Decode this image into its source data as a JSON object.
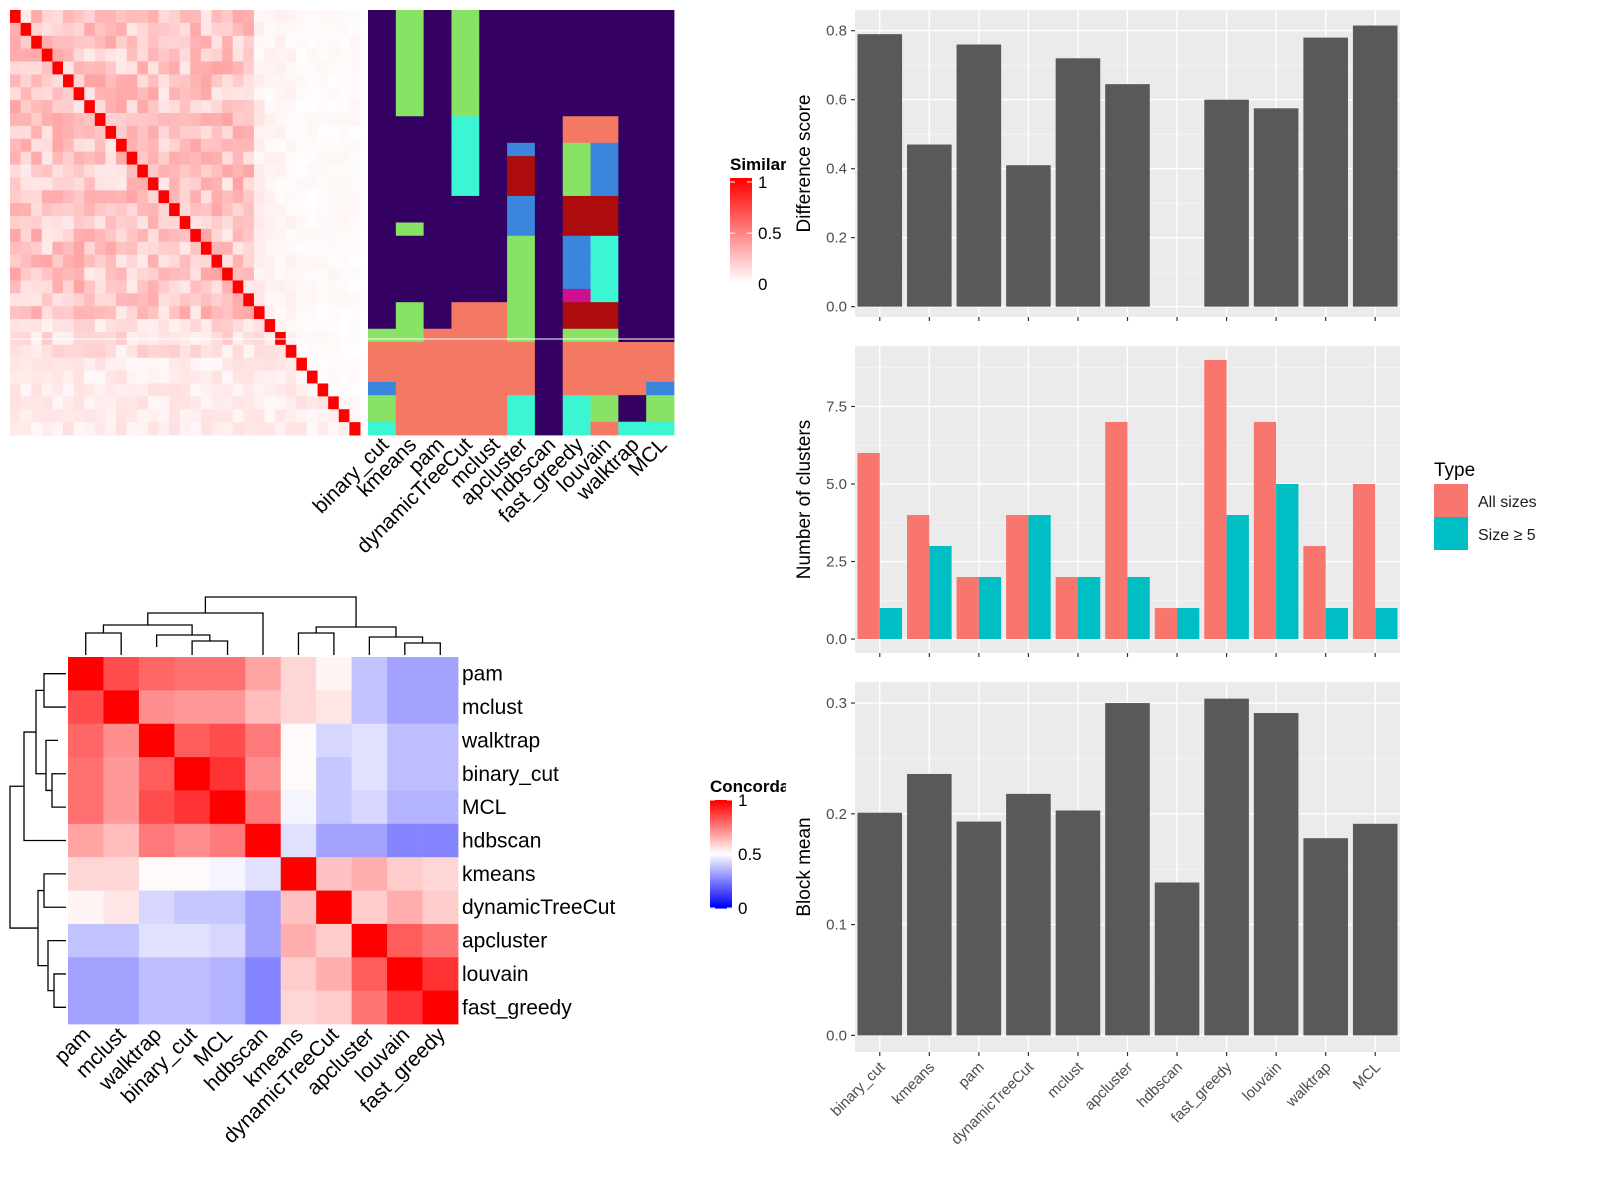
{
  "methods": [
    "binary_cut",
    "kmeans",
    "pam",
    "dynamicTreeCut",
    "mclust",
    "apcluster",
    "hdbscan",
    "fast_greedy",
    "louvain",
    "walktrap",
    "MCL"
  ],
  "similarity_legend": {
    "title": "Similarity",
    "ticks": [
      "1",
      "0.5",
      "0"
    ],
    "low_color": "#FFFFFF",
    "high_color": "#FF0000"
  },
  "concordance_legend": {
    "title": "Concordance",
    "ticks": [
      "1",
      "0.5",
      "0"
    ],
    "low_color": "#0000FF",
    "mid_color": "#FFFFFF",
    "high_color": "#FF0000"
  },
  "concordance_order": [
    "pam",
    "mclust",
    "walktrap",
    "binary_cut",
    "MCL",
    "hdbscan",
    "kmeans",
    "dynamicTreeCut",
    "apcluster",
    "louvain",
    "fast_greedy"
  ],
  "cluster_palette": [
    "#340062",
    "#88E264",
    "#3CF6D3",
    "#3B86DC",
    "#AC0C0C",
    "#F47964",
    "#CF0F92"
  ],
  "type_legend": {
    "title": "Type",
    "all_label": "All sizes",
    "size_label": "Size ≥ 5",
    "all_color": "#F8766D",
    "size_color": "#00BFC4"
  },
  "chart_data": [
    {
      "type": "bar",
      "title": "",
      "xlabel": "",
      "ylabel": "Difference score",
      "categories": [
        "binary_cut",
        "kmeans",
        "pam",
        "dynamicTreeCut",
        "mclust",
        "apcluster",
        "hdbscan",
        "fast_greedy",
        "louvain",
        "walktrap",
        "MCL"
      ],
      "values": [
        0.79,
        0.47,
        0.76,
        0.41,
        0.72,
        0.645,
        0,
        0.6,
        0.575,
        0.78,
        0.815
      ],
      "ylim": [
        -0.03,
        0.86
      ],
      "yticks": [
        "0.0",
        "0.2",
        "0.4",
        "0.6",
        "0.8"
      ],
      "bar_color": "#595959",
      "grid": true
    },
    {
      "type": "bar",
      "title": "",
      "xlabel": "",
      "ylabel": "Number of clusters",
      "categories": [
        "binary_cut",
        "kmeans",
        "pam",
        "dynamicTreeCut",
        "mclust",
        "apcluster",
        "hdbscan",
        "fast_greedy",
        "louvain",
        "walktrap",
        "MCL"
      ],
      "series": [
        {
          "name": "All sizes",
          "values": [
            6,
            4,
            2,
            4,
            2,
            7,
            1,
            9,
            7,
            3,
            5
          ]
        },
        {
          "name": "Size ≥ 5",
          "values": [
            1,
            3,
            2,
            4,
            2,
            2,
            1,
            4,
            5,
            1,
            1
          ]
        }
      ],
      "ylim": [
        -0.45,
        9.45
      ],
      "yticks": [
        "0.0",
        "2.5",
        "5.0",
        "7.5"
      ],
      "legend": "right",
      "grid": true
    },
    {
      "type": "bar",
      "title": "",
      "xlabel": "",
      "ylabel": "Block mean",
      "categories": [
        "binary_cut",
        "kmeans",
        "pam",
        "dynamicTreeCut",
        "mclust",
        "apcluster",
        "hdbscan",
        "fast_greedy",
        "louvain",
        "walktrap",
        "MCL"
      ],
      "values": [
        0.201,
        0.236,
        0.193,
        0.218,
        0.203,
        0.3,
        0.138,
        0.304,
        0.291,
        0.178,
        0.191
      ],
      "ylim": [
        -0.015,
        0.319
      ],
      "yticks": [
        "0.0",
        "0.1",
        "0.2",
        "0.3"
      ],
      "bar_color": "#595959",
      "grid": true
    },
    {
      "type": "heatmap",
      "title": "",
      "rows": [
        "pam",
        "mclust",
        "walktrap",
        "binary_cut",
        "MCL",
        "hdbscan",
        "kmeans",
        "dynamicTreeCut",
        "apcluster",
        "louvain",
        "fast_greedy"
      ],
      "columns": [
        "pam",
        "mclust",
        "walktrap",
        "binary_cut",
        "MCL",
        "hdbscan",
        "kmeans",
        "dynamicTreeCut",
        "apcluster",
        "louvain",
        "fast_greedy"
      ],
      "values": [
        [
          1.0,
          0.85,
          0.8,
          0.78,
          0.78,
          0.68,
          0.58,
          0.52,
          0.38,
          0.32,
          0.32
        ],
        [
          0.85,
          1.0,
          0.72,
          0.7,
          0.7,
          0.63,
          0.58,
          0.55,
          0.38,
          0.32,
          0.32
        ],
        [
          0.8,
          0.72,
          1.0,
          0.82,
          0.85,
          0.76,
          0.51,
          0.42,
          0.44,
          0.37,
          0.37
        ],
        [
          0.78,
          0.7,
          0.82,
          1.0,
          0.9,
          0.72,
          0.51,
          0.39,
          0.44,
          0.37,
          0.37
        ],
        [
          0.78,
          0.7,
          0.85,
          0.9,
          1.0,
          0.76,
          0.48,
          0.39,
          0.42,
          0.35,
          0.35
        ],
        [
          0.68,
          0.63,
          0.76,
          0.72,
          0.76,
          1.0,
          0.44,
          0.32,
          0.32,
          0.26,
          0.26
        ],
        [
          0.58,
          0.58,
          0.51,
          0.51,
          0.48,
          0.44,
          1.0,
          0.62,
          0.66,
          0.6,
          0.58
        ],
        [
          0.52,
          0.55,
          0.42,
          0.39,
          0.39,
          0.32,
          0.62,
          1.0,
          0.6,
          0.66,
          0.6
        ],
        [
          0.38,
          0.38,
          0.44,
          0.44,
          0.42,
          0.32,
          0.66,
          0.6,
          1.0,
          0.82,
          0.77
        ],
        [
          0.32,
          0.32,
          0.37,
          0.37,
          0.35,
          0.26,
          0.6,
          0.66,
          0.82,
          1.0,
          0.9
        ],
        [
          0.32,
          0.32,
          0.37,
          0.37,
          0.35,
          0.26,
          0.58,
          0.6,
          0.77,
          0.9,
          1.0
        ]
      ]
    },
    {
      "type": "heatmap",
      "title": "",
      "rows": 32,
      "columns": [
        "binary_cut",
        "kmeans",
        "pam",
        "dynamicTreeCut",
        "mclust",
        "apcluster",
        "hdbscan",
        "fast_greedy",
        "louvain",
        "walktrap",
        "MCL"
      ],
      "cluster_labels": [
        [
          0,
          1,
          0,
          1,
          0,
          0,
          0,
          0,
          0,
          0,
          0
        ],
        [
          0,
          1,
          0,
          1,
          0,
          0,
          0,
          0,
          0,
          0,
          0
        ],
        [
          0,
          1,
          0,
          1,
          0,
          0,
          0,
          0,
          0,
          0,
          0
        ],
        [
          0,
          1,
          0,
          1,
          0,
          0,
          0,
          0,
          0,
          0,
          0
        ],
        [
          0,
          1,
          0,
          1,
          0,
          0,
          0,
          0,
          0,
          0,
          0
        ],
        [
          0,
          1,
          0,
          1,
          0,
          0,
          0,
          0,
          0,
          0,
          0
        ],
        [
          0,
          1,
          0,
          1,
          0,
          0,
          0,
          0,
          0,
          0,
          0
        ],
        [
          0,
          1,
          0,
          1,
          0,
          0,
          0,
          0,
          0,
          0,
          0
        ],
        [
          0,
          0,
          0,
          2,
          0,
          0,
          0,
          5,
          5,
          0,
          0
        ],
        [
          0,
          0,
          0,
          2,
          0,
          0,
          0,
          5,
          5,
          0,
          0
        ],
        [
          0,
          0,
          0,
          2,
          0,
          3,
          0,
          1,
          3,
          0,
          0
        ],
        [
          0,
          0,
          0,
          2,
          0,
          4,
          0,
          1,
          3,
          0,
          0
        ],
        [
          0,
          0,
          0,
          2,
          0,
          4,
          0,
          1,
          3,
          0,
          0
        ],
        [
          0,
          0,
          0,
          2,
          0,
          4,
          0,
          1,
          3,
          0,
          0
        ],
        [
          0,
          0,
          0,
          0,
          0,
          3,
          0,
          4,
          4,
          0,
          0
        ],
        [
          0,
          0,
          0,
          0,
          0,
          3,
          0,
          4,
          4,
          0,
          0
        ],
        [
          0,
          1,
          0,
          0,
          0,
          3,
          0,
          4,
          4,
          0,
          0
        ],
        [
          0,
          0,
          0,
          0,
          0,
          1,
          0,
          3,
          2,
          0,
          0
        ],
        [
          0,
          0,
          0,
          0,
          0,
          1,
          0,
          3,
          2,
          0,
          0
        ],
        [
          0,
          0,
          0,
          0,
          0,
          1,
          0,
          3,
          2,
          0,
          0
        ],
        [
          0,
          0,
          0,
          0,
          0,
          1,
          0,
          3,
          2,
          0,
          0
        ],
        [
          0,
          0,
          0,
          0,
          0,
          1,
          0,
          6,
          2,
          0,
          0
        ],
        [
          0,
          1,
          0,
          5,
          5,
          1,
          0,
          4,
          4,
          0,
          0
        ],
        [
          0,
          1,
          0,
          5,
          5,
          1,
          0,
          4,
          4,
          0,
          0
        ],
        [
          1,
          1,
          5,
          5,
          5,
          1,
          0,
          1,
          1,
          0,
          0
        ],
        [
          5,
          5,
          5,
          5,
          5,
          5,
          0,
          5,
          5,
          5,
          5
        ],
        [
          5,
          5,
          5,
          5,
          5,
          5,
          0,
          5,
          5,
          5,
          5
        ],
        [
          5,
          5,
          5,
          5,
          5,
          5,
          0,
          5,
          5,
          5,
          5
        ],
        [
          3,
          5,
          5,
          5,
          5,
          5,
          0,
          5,
          5,
          5,
          3
        ],
        [
          1,
          5,
          5,
          5,
          5,
          2,
          0,
          2,
          1,
          0,
          1
        ],
        [
          1,
          5,
          5,
          5,
          5,
          2,
          0,
          2,
          1,
          0,
          1
        ],
        [
          2,
          5,
          5,
          5,
          5,
          2,
          0,
          2,
          5,
          2,
          2
        ]
      ]
    }
  ]
}
